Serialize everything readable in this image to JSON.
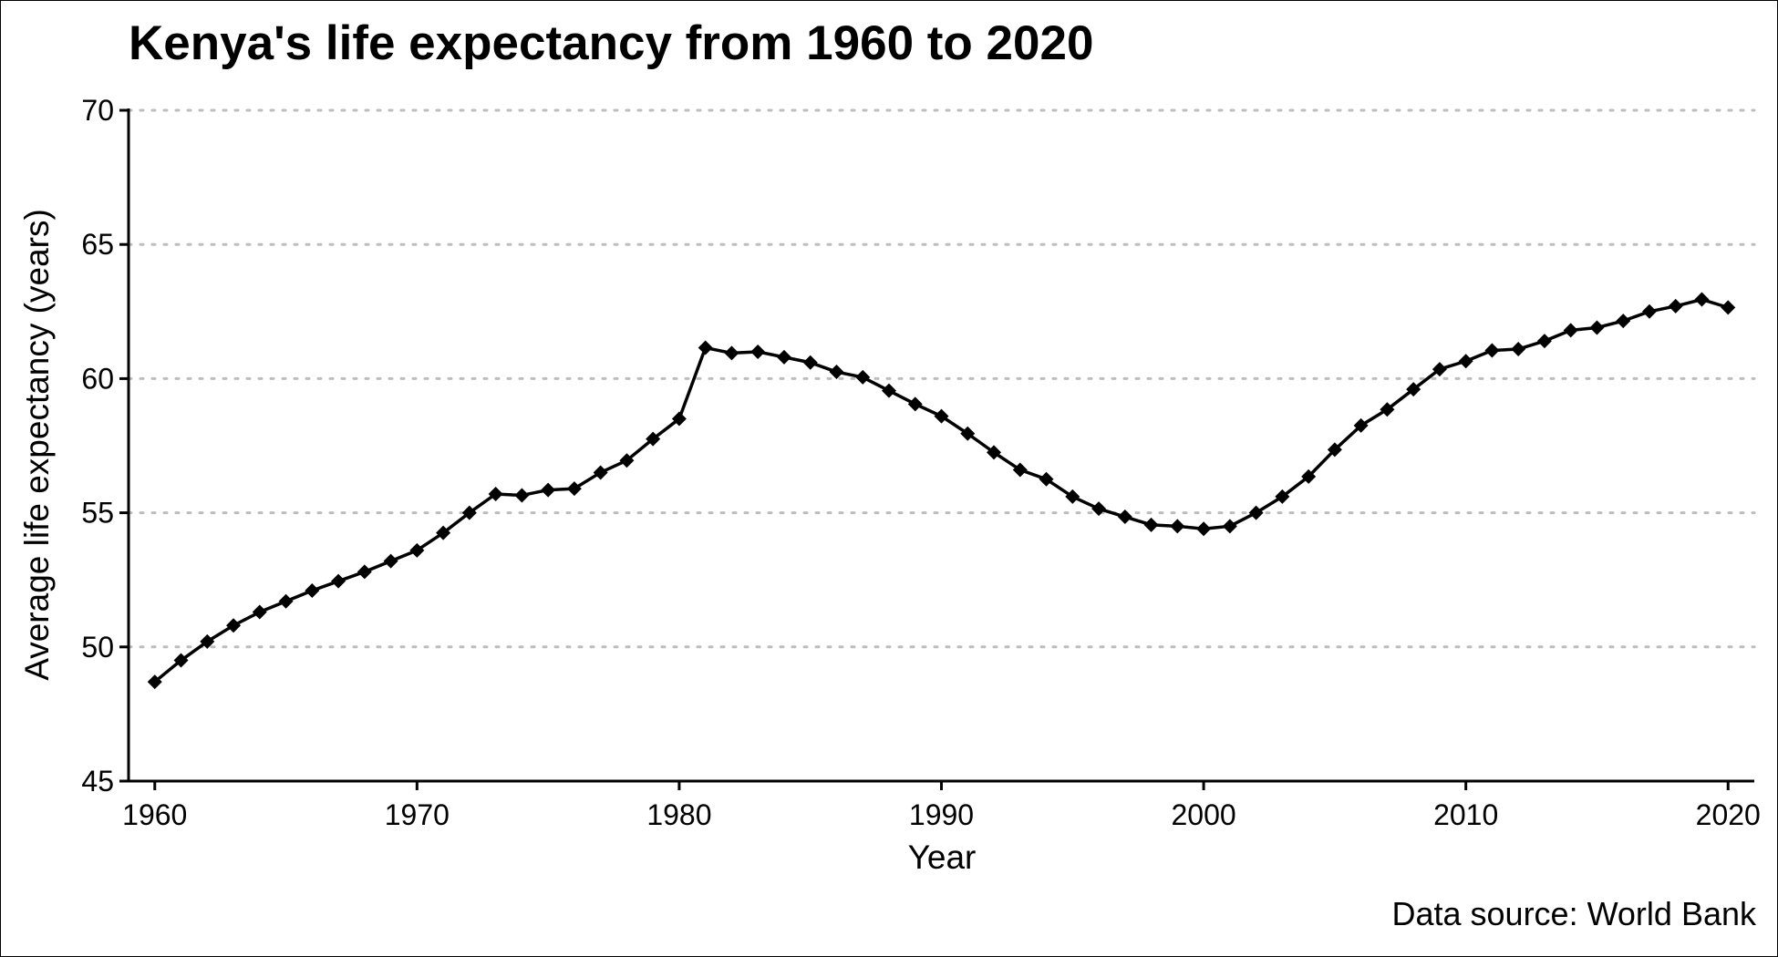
{
  "chart_data": {
    "type": "line",
    "title": "Kenya's life expectancy from 1960 to 2020",
    "xlabel": "Year",
    "ylabel": "Average life expectancy (years)",
    "source": "Data source: World Bank",
    "xlim": [
      1959,
      2021
    ],
    "ylim": [
      45,
      70
    ],
    "x_ticks": [
      1960,
      1970,
      1980,
      1990,
      2000,
      2010,
      2020
    ],
    "y_ticks": [
      45,
      50,
      55,
      60,
      65,
      70
    ],
    "grid": "horizontal dotted",
    "line_color": "#000000",
    "grid_color": "#bdbdbd",
    "marker": "diamond",
    "series": [
      {
        "x": [
          1960,
          1961,
          1962,
          1963,
          1964,
          1965,
          1966,
          1967,
          1968,
          1969,
          1970,
          1971,
          1972,
          1973,
          1974,
          1975,
          1976,
          1977,
          1978,
          1979,
          1980,
          1981,
          1982,
          1983,
          1984,
          1985,
          1986,
          1987,
          1988,
          1989,
          1990,
          1991,
          1992,
          1993,
          1994,
          1995,
          1996,
          1997,
          1998,
          1999,
          2000,
          2001,
          2002,
          2003,
          2004,
          2005,
          2006,
          2007,
          2008,
          2009,
          2010,
          2011,
          2012,
          2013,
          2014,
          2015,
          2016,
          2017,
          2018,
          2019,
          2020
        ],
        "y": [
          48.7,
          49.5,
          50.2,
          50.8,
          51.3,
          51.7,
          52.1,
          52.45,
          52.8,
          53.2,
          53.6,
          54.25,
          55.0,
          55.7,
          55.65,
          55.85,
          55.9,
          56.5,
          56.95,
          57.75,
          58.5,
          61.15,
          60.95,
          61.0,
          60.8,
          60.6,
          60.25,
          60.05,
          59.55,
          59.05,
          58.6,
          57.95,
          57.25,
          56.6,
          56.25,
          55.6,
          55.15,
          54.85,
          54.55,
          54.5,
          54.4,
          54.5,
          55.0,
          55.6,
          56.35,
          57.35,
          58.25,
          58.85,
          59.6,
          60.35,
          60.65,
          61.05,
          61.1,
          61.4,
          61.8,
          61.9,
          62.15,
          62.5,
          62.7,
          62.95,
          62.65
        ]
      }
    ]
  }
}
